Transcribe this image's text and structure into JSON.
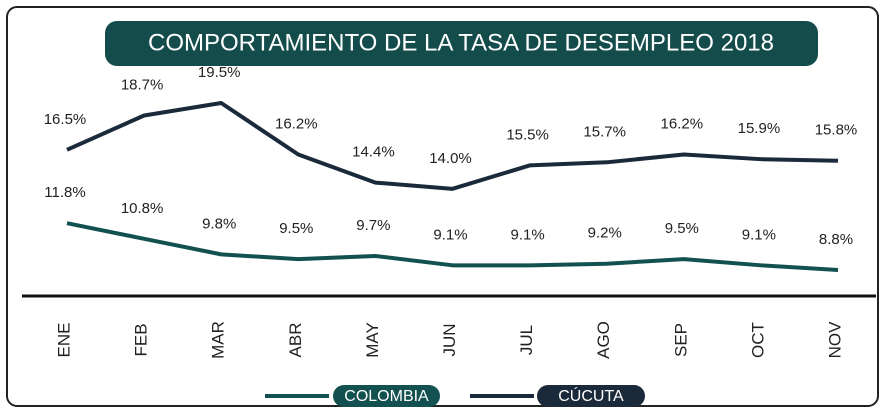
{
  "chart_data": {
    "type": "line",
    "title": "COMPORTAMIENTO DE LA TASA DE DESEMPLEO 2018",
    "categories": [
      "ENE",
      "FEB",
      "MAR",
      "ABR",
      "MAY",
      "JUN",
      "JUL",
      "AGO",
      "SEP",
      "OCT",
      "NOV"
    ],
    "series": [
      {
        "name": "CÚCUTA",
        "color": "#1b2a3b",
        "values": [
          16.5,
          18.7,
          19.5,
          16.2,
          14.4,
          14.0,
          15.5,
          15.7,
          16.2,
          15.9,
          15.8
        ],
        "value_labels": [
          "16.5%",
          "18.7%",
          "19.5%",
          "16.2%",
          "14.4%",
          "14.0%",
          "15.5%",
          "15.7%",
          "16.2%",
          "15.9%",
          "15.8%"
        ]
      },
      {
        "name": "COLOMBIA",
        "color": "#135150",
        "values": [
          11.8,
          10.8,
          9.8,
          9.5,
          9.7,
          9.1,
          9.1,
          9.2,
          9.5,
          9.1,
          8.8
        ],
        "value_labels": [
          "11.8%",
          "10.8%",
          "9.8%",
          "9.5%",
          "9.7%",
          "9.1%",
          "9.1%",
          "9.2%",
          "9.5%",
          "9.1%",
          "8.8%"
        ]
      }
    ]
  }
}
